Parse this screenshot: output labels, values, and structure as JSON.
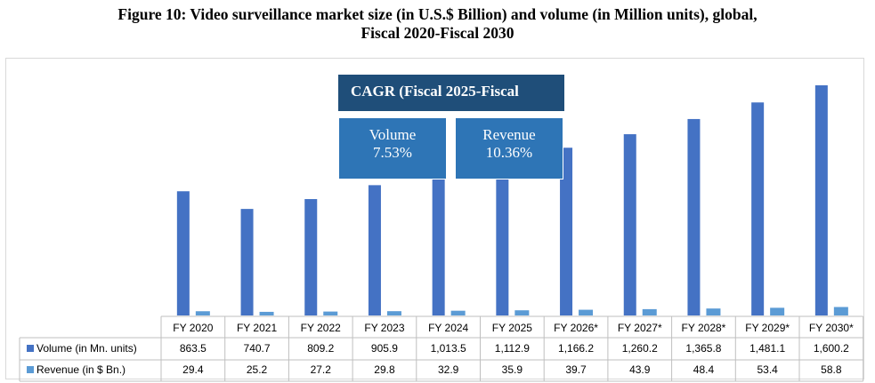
{
  "title_line1": "Figure 10: Video surveillance market size (in U.S.$ Billion) and volume (in Million units), global,",
  "title_line2": "Fiscal 2020-Fiscal 2030",
  "cagr": {
    "title": "CAGR (Fiscal 2025-Fiscal",
    "volume_label": "Volume",
    "volume_value": "7.53%",
    "revenue_label": "Revenue",
    "revenue_value": "10.36%"
  },
  "colors": {
    "volume": "#4472c4",
    "revenue": "#5b9bd5",
    "cagr_title_bg": "#1f4e79",
    "cagr_item_bg": "#2e75b6"
  },
  "chart_data": {
    "type": "bar",
    "categories": [
      "FY 2020",
      "FY 2021",
      "FY 2022",
      "FY 2023",
      "FY 2024",
      "FY 2025",
      "FY 2026*",
      "FY 2027*",
      "FY 2028*",
      "FY 2029*",
      "FY 2030*"
    ],
    "series": [
      {
        "name": "Volume (in Mn. units)",
        "values": [
          863.5,
          740.7,
          809.2,
          905.9,
          1013.5,
          1112.9,
          1166.2,
          1260.2,
          1365.8,
          1481.1,
          1600.2
        ],
        "labels": [
          "863.5",
          "740.7",
          "809.2",
          "905.9",
          "1,013.5",
          "1,112.9",
          "1,166.2",
          "1,260.2",
          "1,365.8",
          "1,481.1",
          "1,600.2"
        ]
      },
      {
        "name": "Revenue (in $ Bn.)",
        "values": [
          29.4,
          25.2,
          27.2,
          29.8,
          32.9,
          35.9,
          39.7,
          43.9,
          48.4,
          53.4,
          58.8
        ],
        "labels": [
          "29.4",
          "25.2",
          "27.2",
          "29.8",
          "32.9",
          "35.9",
          "39.7",
          "43.9",
          "48.4",
          "53.4",
          "58.8"
        ]
      }
    ],
    "ylim": [
      0,
      1600.2
    ],
    "legend": "data-table",
    "grid": false
  }
}
